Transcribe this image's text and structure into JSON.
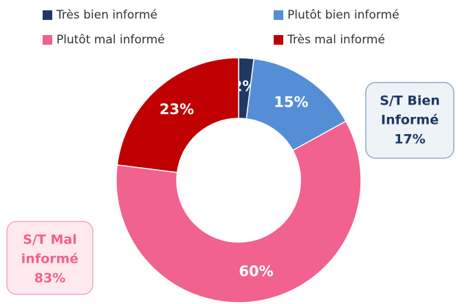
{
  "chart_data": {
    "type": "donut",
    "categories": [
      "Très bien informé",
      "Plutôt bien informé",
      "Plutôt mal informé",
      "Très mal informé"
    ],
    "values": [
      2,
      15,
      60,
      23
    ],
    "value_labels": [
      "2%",
      "15%",
      "60%",
      "23%"
    ],
    "colors": [
      "#1f3864",
      "#558ed5",
      "#f2628e",
      "#c00000"
    ],
    "legend": "top",
    "annotations": [
      {
        "lines": [
          "S/T Bien",
          "Informé",
          "17%"
        ],
        "color": "#1f3864"
      },
      {
        "lines": [
          "S/T Mal",
          "informé",
          "83%"
        ],
        "color": "#f2628e"
      }
    ]
  }
}
